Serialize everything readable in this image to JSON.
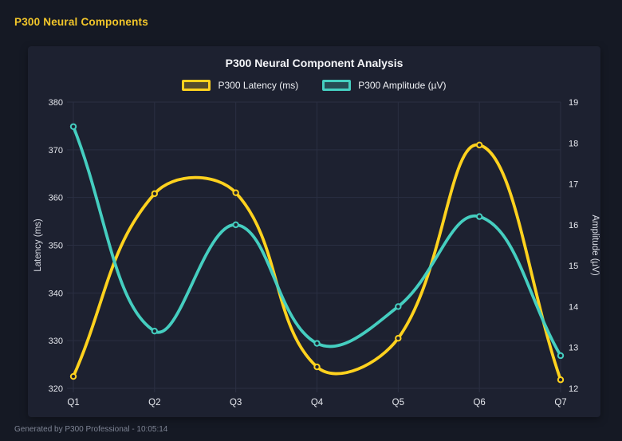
{
  "page": {
    "title": "P300 Neural Components",
    "footer": "Generated by P300 Professional - 10:05:14"
  },
  "colors": {
    "page_bg": "#151924",
    "card_bg": "#1d2130",
    "grid": "#2a2f42",
    "tick_label": "#e6e8ee",
    "axis_title": "#d8dbe4",
    "chart_title": "#f4f5f8",
    "header_accent": "#f2c62a",
    "latency_line": "#ffd21e",
    "amplitude_line": "#45cec0"
  },
  "chart_data": {
    "type": "line",
    "title": "P300 Neural Component Analysis",
    "categories": [
      "Q1",
      "Q2",
      "Q3",
      "Q4",
      "Q5",
      "Q6",
      "Q7"
    ],
    "series": [
      {
        "name": "P300 Latency (ms)",
        "axis": "left",
        "color": "#ffd21e",
        "values": [
          322.5,
          360.8,
          361.0,
          324.5,
          330.5,
          371.0,
          321.8
        ]
      },
      {
        "name": "P300 Amplitude (µV)",
        "axis": "right",
        "color": "#45cec0",
        "values": [
          18.4,
          13.4,
          16.0,
          13.1,
          14.0,
          16.2,
          12.8
        ]
      }
    ],
    "left_axis": {
      "label": "Latency (ms)",
      "min": 320,
      "max": 380,
      "ticks": [
        320,
        330,
        340,
        350,
        360,
        370,
        380
      ]
    },
    "right_axis": {
      "label": "Amplitude (µV)",
      "min": 12,
      "max": 19,
      "ticks": [
        12,
        13,
        14,
        15,
        16,
        17,
        18,
        19
      ]
    },
    "grid": true,
    "legend_position": "top",
    "line_tension": 0.4
  }
}
